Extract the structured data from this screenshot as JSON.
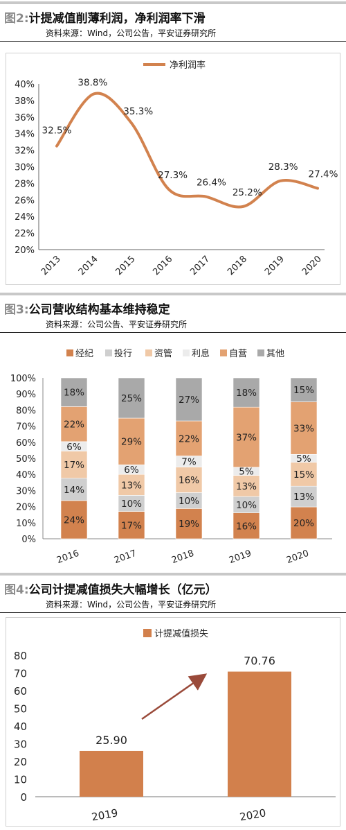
{
  "fig2": {
    "title_no": "图2:",
    "title_text": "计提减值削薄利润，净利润率下滑",
    "source": "资料来源：Wind，公司公告，平安证券研究所"
  },
  "fig3": {
    "title_no": "图3:",
    "title_text": "公司营收结构基本维持稳定",
    "source": "资料来源：公司公告、平安证券研究所"
  },
  "fig4": {
    "title_no": "图4:",
    "title_text": "公司计提减值损失大幅增长（亿元）",
    "source": "资料来源：Wind，公司公告，平安证券研究所"
  },
  "colors": {
    "orange": "#d2824e",
    "grey": "#a9a9a9",
    "light_grey": "#cfcfcf",
    "peach": "#f0c9a7",
    "very_light": "#ececec",
    "mid_orange": "#e3a272",
    "bar_orange": "#d2804c"
  },
  "chart_data": [
    {
      "type": "line",
      "x": [
        "2013",
        "2014",
        "2015",
        "2016",
        "2017",
        "2018",
        "2019",
        "2020"
      ],
      "series": [
        {
          "name": "净利润率",
          "values": [
            32.5,
            38.8,
            35.3,
            27.3,
            26.4,
            25.2,
            28.3,
            27.4
          ],
          "labels": [
            "32.5%",
            "38.8%",
            "35.3%",
            "27.3%",
            "26.4%",
            "25.2%",
            "28.3%",
            "27.4%"
          ]
        }
      ],
      "ylim": [
        20,
        40
      ],
      "yticks": [
        "20%",
        "22%",
        "24%",
        "26%",
        "28%",
        "30%",
        "32%",
        "34%",
        "36%",
        "38%",
        "40%"
      ],
      "legend_position": "top",
      "grid": false
    },
    {
      "type": "bar",
      "stacked": true,
      "categories": [
        "2016",
        "2017",
        "2018",
        "2019",
        "2020"
      ],
      "series": [
        {
          "name": "经纪",
          "values": [
            24,
            17,
            19,
            16,
            20
          ],
          "labels": [
            "24%",
            "17%",
            "19%",
            "16%",
            "20%"
          ]
        },
        {
          "name": "投行",
          "values": [
            14,
            10,
            10,
            10,
            13
          ],
          "labels": [
            "14%",
            "10%",
            "10%",
            "10%",
            "13%"
          ]
        },
        {
          "name": "资管",
          "values": [
            17,
            13,
            16,
            13,
            15
          ],
          "labels": [
            "17%",
            "13%",
            "16%",
            "13%",
            "15%"
          ]
        },
        {
          "name": "利息",
          "values": [
            6,
            6,
            7,
            5,
            5
          ],
          "labels": [
            "6%",
            "6%",
            "7%",
            "5%",
            "5%"
          ]
        },
        {
          "name": "自营",
          "values": [
            22,
            29,
            22,
            37,
            33
          ],
          "labels": [
            "22%",
            "29%",
            "22%",
            "37%",
            "33%"
          ]
        },
        {
          "name": "其他",
          "values": [
            18,
            25,
            27,
            18,
            15
          ],
          "labels": [
            "18%",
            "25%",
            "27%",
            "18%",
            "15%"
          ]
        }
      ],
      "ylim": [
        0,
        100
      ],
      "yticks": [
        "0%",
        "10%",
        "20%",
        "30%",
        "40%",
        "50%",
        "60%",
        "70%",
        "80%",
        "90%",
        "100%"
      ],
      "legend_position": "top",
      "grid": false
    },
    {
      "type": "bar",
      "categories": [
        "2019",
        "2020"
      ],
      "series": [
        {
          "name": "计提减值损失",
          "values": [
            25.9,
            70.76
          ],
          "labels": [
            "25.90",
            "70.76"
          ]
        }
      ],
      "ylim": [
        0,
        80
      ],
      "yticks": [
        "0",
        "10",
        "20",
        "30",
        "40",
        "50",
        "60",
        "70",
        "80"
      ],
      "legend_position": "top",
      "annotation": "arrow pointing up from 2019 bar toward 2020 bar",
      "grid": false
    }
  ]
}
